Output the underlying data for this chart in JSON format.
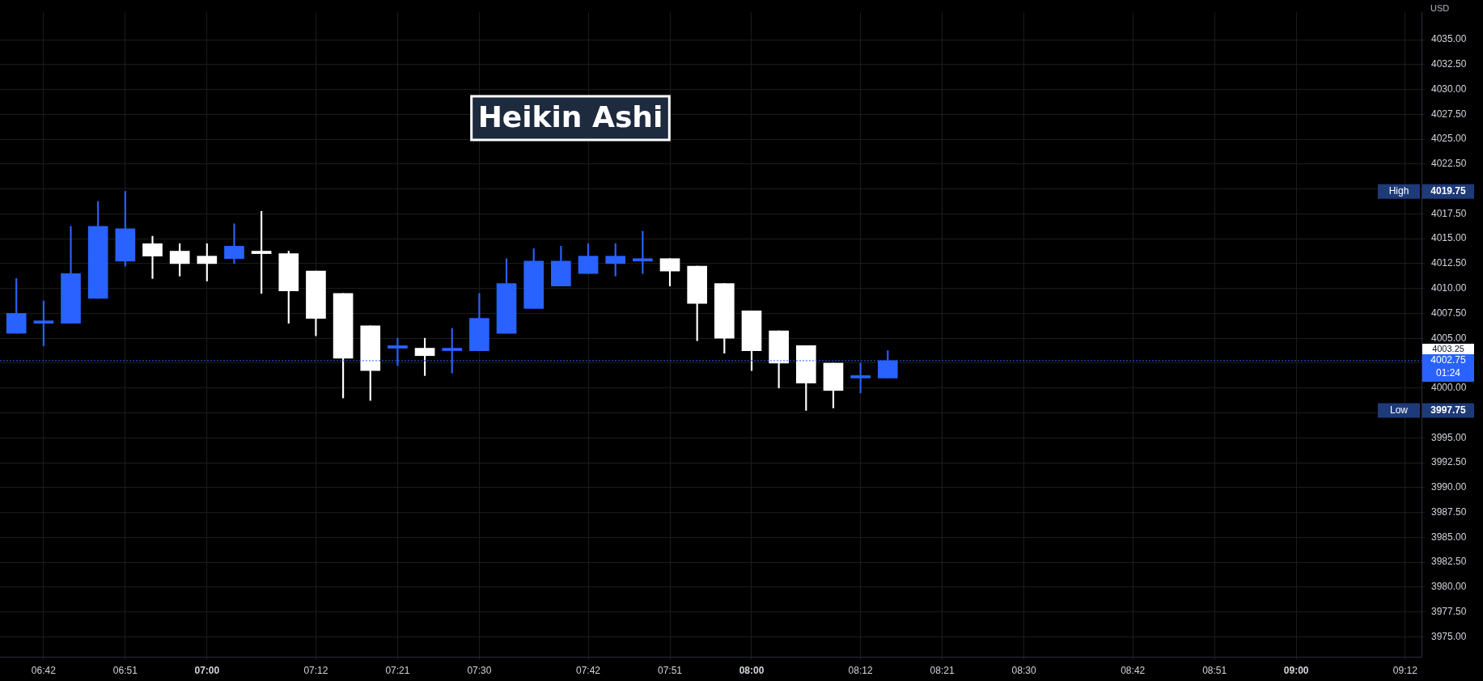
{
  "chart_data": {
    "type": "candlestick",
    "title": "Heikin Ashi",
    "ylabel": "USD",
    "x": [
      6.65,
      6.7,
      6.75,
      6.8,
      6.85,
      6.9,
      6.95,
      7,
      7.05,
      7.1,
      7.15,
      7.2,
      7.25,
      7.3,
      7.35,
      7.4,
      7.45,
      7.5,
      7.55,
      7.6,
      7.65,
      7.7,
      7.75,
      7.8,
      7.85,
      7.9,
      7.95,
      8,
      8.05,
      8.1,
      8.15,
      8.2,
      8.25
    ],
    "ohlc": [
      [
        4005.5,
        4011,
        4005.5,
        4007.5
      ],
      [
        4006.5,
        4008.75,
        4004.25,
        4006.75
      ],
      [
        4006.5,
        4016.25,
        4006.5,
        4011.5
      ],
      [
        4009,
        4018.75,
        4009,
        4016.25
      ],
      [
        4012.75,
        4019.75,
        4012.25,
        4016
      ],
      [
        4014.5,
        4015.25,
        4011,
        4013.25
      ],
      [
        4013.75,
        4014.5,
        4011.25,
        4012.5
      ],
      [
        4013.25,
        4014.5,
        4010.75,
        4012.5
      ],
      [
        4013,
        4016.5,
        4012.5,
        4014.25
      ],
      [
        4013.75,
        4017.75,
        4009.5,
        4013.5
      ],
      [
        4013.5,
        4013.75,
        4006.5,
        4009.75
      ],
      [
        4011.75,
        4011.75,
        4005.25,
        4007
      ],
      [
        4009.5,
        4009.5,
        3999,
        4003
      ],
      [
        4006.25,
        4006.25,
        3998.75,
        4001.75
      ],
      [
        4004,
        4005,
        4002.25,
        4004.25
      ],
      [
        4004,
        4005,
        4001.25,
        4003.25
      ],
      [
        4003.75,
        4006,
        4001.5,
        4004
      ],
      [
        4003.75,
        4009.5,
        4003.75,
        4007
      ],
      [
        4005.5,
        4013,
        4005.5,
        4010.5
      ],
      [
        4008,
        4014,
        4008,
        4012.75
      ],
      [
        4010.25,
        4014.25,
        4010.25,
        4012.75
      ],
      [
        4011.5,
        4014.5,
        4011.5,
        4013.25
      ],
      [
        4012.5,
        4014.5,
        4011.25,
        4013.25
      ],
      [
        4012.75,
        4015.75,
        4011.5,
        4013
      ],
      [
        4013,
        4013,
        4010.25,
        4011.75
      ],
      [
        4012.25,
        4012.25,
        4004.75,
        4008.5
      ],
      [
        4010.5,
        4010.5,
        4003.5,
        4005
      ],
      [
        4007.75,
        4007.75,
        4001.75,
        4003.75
      ],
      [
        4005.75,
        4005.75,
        4000,
        4002.5
      ],
      [
        4004.25,
        4004.25,
        3997.75,
        4000.5
      ],
      [
        4002.5,
        4002.5,
        3998,
        3999.75
      ],
      [
        4001,
        4002.5,
        3999.5,
        4001.25
      ],
      [
        4001,
        4003.75,
        4001,
        4002.75
      ]
    ],
    "colors": [
      "#2962ff",
      "#2962ff",
      "#2962ff",
      "#2962ff",
      "#2962ff",
      "#ffffff",
      "#ffffff",
      "#ffffff",
      "#2962ff",
      "#ffffff",
      "#ffffff",
      "#ffffff",
      "#ffffff",
      "#ffffff",
      "#2962ff",
      "#ffffff",
      "#2962ff",
      "#2962ff",
      "#2962ff",
      "#2962ff",
      "#2962ff",
      "#2962ff",
      "#2962ff",
      "#2962ff",
      "#ffffff",
      "#ffffff",
      "#ffffff",
      "#ffffff",
      "#ffffff",
      "#ffffff",
      "#ffffff",
      "#2962ff",
      "#2962ff"
    ],
    "xlim": [
      6.62,
      9.23
    ],
    "xticks": [
      {
        "value": 6.7,
        "label": "06:42"
      },
      {
        "value": 6.85,
        "label": "06:51"
      },
      {
        "value": 7,
        "label": "07:00"
      },
      {
        "value": 7.2,
        "label": "07:12"
      },
      {
        "value": 7.35,
        "label": "07:21"
      },
      {
        "value": 7.5,
        "label": "07:30"
      },
      {
        "value": 7.7,
        "label": "07:42"
      },
      {
        "value": 7.85,
        "label": "07:51"
      },
      {
        "value": 8,
        "label": "08:00"
      },
      {
        "value": 8.2,
        "label": "08:12"
      },
      {
        "value": 8.35,
        "label": "08:21"
      },
      {
        "value": 8.5,
        "label": "08:30"
      },
      {
        "value": 8.7,
        "label": "08:42"
      },
      {
        "value": 8.85,
        "label": "08:51"
      },
      {
        "value": 9,
        "label": "09:00"
      },
      {
        "value": 9.2,
        "label": "09:12"
      }
    ],
    "ylim": [
      3973,
      4037.75
    ],
    "yticks": [
      {
        "value": 3975,
        "label": "3975.00"
      },
      {
        "value": 3977.5,
        "label": "3977.50"
      },
      {
        "value": 3980,
        "label": "3980.00"
      },
      {
        "value": 3982.5,
        "label": "3982.50"
      },
      {
        "value": 3985,
        "label": "3985.00"
      },
      {
        "value": 3987.5,
        "label": "3987.50"
      },
      {
        "value": 3990,
        "label": "3990.00"
      },
      {
        "value": 3992.5,
        "label": "3992.50"
      },
      {
        "value": 3995,
        "label": "3995.00"
      },
      {
        "value": 3997.5,
        "label": null
      },
      {
        "value": 3997.75,
        "label": "3997.75"
      },
      {
        "value": 4000,
        "label": "4000.00"
      },
      {
        "value": 4002.5,
        "label": null
      },
      {
        "value": 4005,
        "label": "4005.00"
      },
      {
        "value": 4007.5,
        "label": "4007.50"
      },
      {
        "value": 4010,
        "label": "4010.00"
      },
      {
        "value": 4012.5,
        "label": "4012.50"
      },
      {
        "value": 4015,
        "label": "4015.00"
      },
      {
        "value": 4017.5,
        "label": "4017.50"
      },
      {
        "value": 4019.75,
        "label": "4019.75"
      },
      {
        "value": 4020,
        "label": null
      },
      {
        "value": 4022.5,
        "label": "4022.50"
      },
      {
        "value": 4025,
        "label": "4025.00"
      },
      {
        "value": 4027.5,
        "label": "4027.50"
      },
      {
        "value": 4030,
        "label": "4030.00"
      },
      {
        "value": 4032.5,
        "label": "4032.50"
      },
      {
        "value": 4035,
        "label": "4035.00"
      }
    ],
    "grid": true,
    "legend": false,
    "ref_lines": [
      {
        "axis": "y",
        "value": 4002.75,
        "label": "4002.75",
        "color": "#2962ff",
        "line_style": "dotted"
      }
    ],
    "annotations": [
      "High",
      "Low",
      "01:24",
      "4003.25"
    ]
  }
}
